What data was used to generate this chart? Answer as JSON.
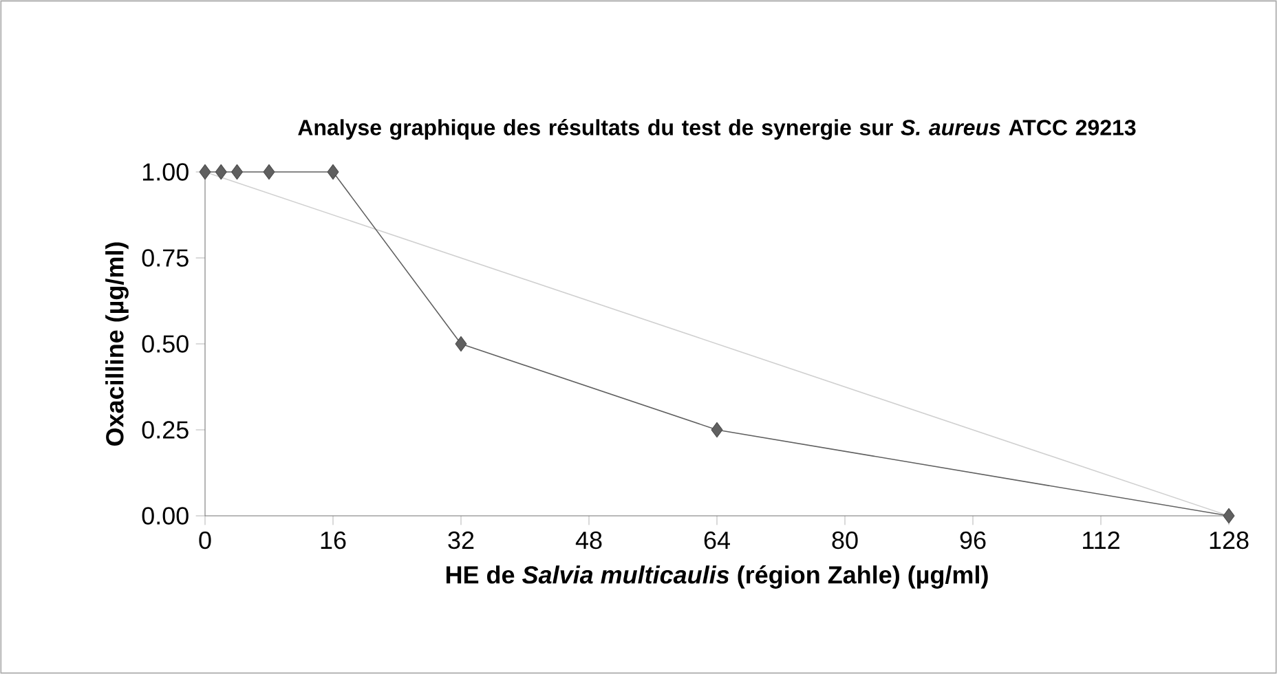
{
  "chart_data": {
    "type": "line",
    "title": "Analyse graphique des résultats du test de synergie sur *S. aureus* ATCC 29213",
    "xlabel": "HE de *Salvia multicaulis* (région Zahle) (µg/ml)",
    "ylabel": "Oxacilline (µg/ml)",
    "xlim": [
      0,
      128
    ],
    "xticks": [
      0,
      16,
      32,
      48,
      64,
      80,
      96,
      112,
      128
    ],
    "ylim": [
      0,
      1
    ],
    "yticks": [
      {
        "value": 0,
        "label": "0.00"
      },
      {
        "value": 0.25,
        "label": "0.25"
      },
      {
        "value": 0.5,
        "label": "0.50"
      },
      {
        "value": 0.75,
        "label": "0.75"
      },
      {
        "value": 1,
        "label": "1.00"
      }
    ],
    "series": [
      {
        "color": "#606060",
        "marker": "diamond",
        "line_style": "solid",
        "x": [
          0,
          2,
          4,
          8,
          16,
          32,
          64,
          128
        ],
        "values": [
          1,
          1,
          1,
          1,
          1,
          0.5,
          0.25,
          0
        ]
      },
      {
        "color": "#d0d0d0",
        "marker": "none",
        "x": [
          0,
          128
        ],
        "values": [
          1,
          0
        ]
      }
    ]
  }
}
